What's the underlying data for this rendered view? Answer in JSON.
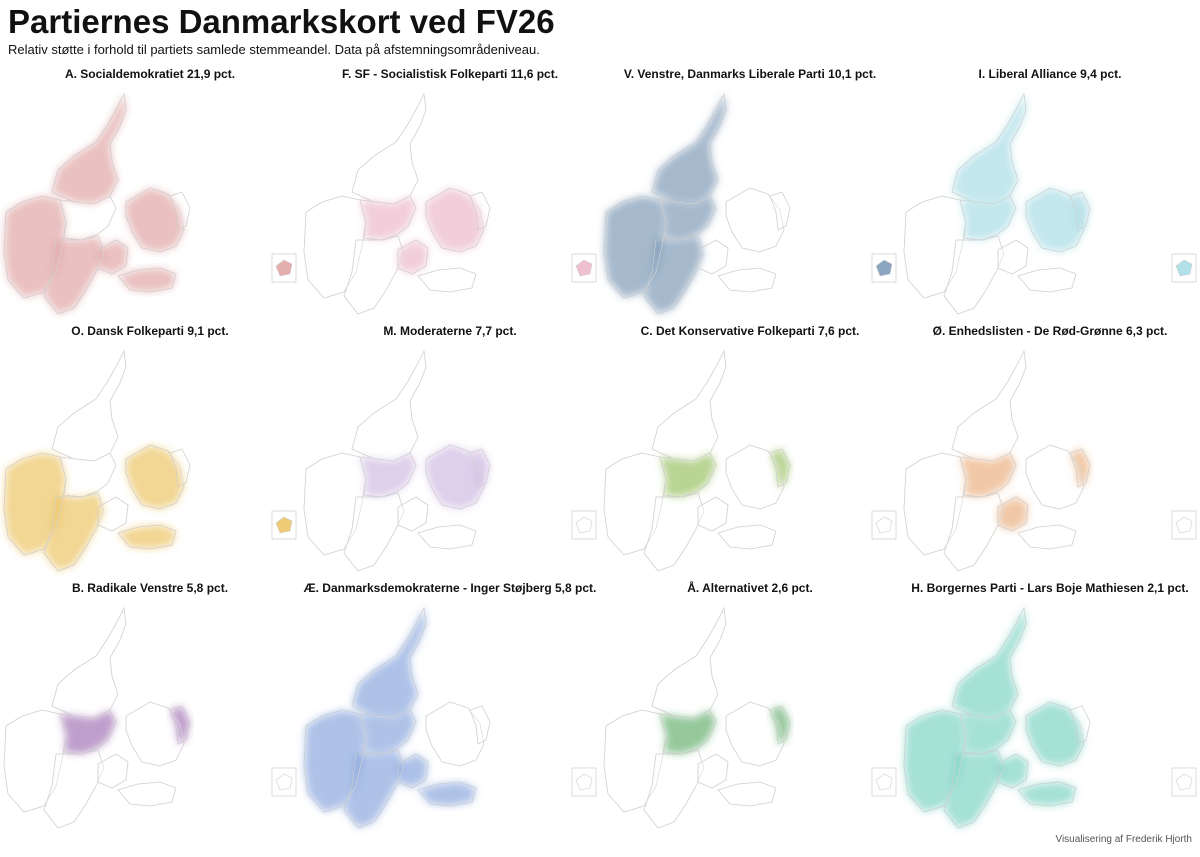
{
  "title": "Partiernes Danmarkskort ved FV26",
  "subtitle": "Relativ støtte i forhold til partiets samlede stemmeandel. Data på afstemningsområdeniveau.",
  "credit": "Visualisering af Frederik Hjorth",
  "panels": [
    {
      "label": "A. Socialdemokratiet 21,9 pct.",
      "share": 21.9,
      "color": "#d98c8c",
      "regions": [
        "north-jutland",
        "west-jutland",
        "funen",
        "zealand",
        "south-jutland",
        "lolland-falster"
      ],
      "bornholm": true
    },
    {
      "label": "F. SF - Socialistisk Folkeparti 11,6 pct.",
      "share": 11.6,
      "color": "#e8a5bd",
      "regions": [
        "central-jutland",
        "funen",
        "zealand"
      ],
      "bornholm": true
    },
    {
      "label": "V. Venstre, Danmarks Liberale Parti 10,1 pct.",
      "share": 10.1,
      "color": "#5b7fa3",
      "regions": [
        "west-jutland",
        "north-jutland",
        "central-jutland",
        "south-jutland"
      ],
      "bornholm": true
    },
    {
      "label": "I. Liberal Alliance 9,4 pct.",
      "share": 9.4,
      "color": "#8fd3de",
      "regions": [
        "central-jutland",
        "north-jutland",
        "zealand",
        "capital"
      ],
      "bornholm": true
    },
    {
      "label": "O. Dansk Folkeparti 9,1 pct.",
      "share": 9.1,
      "color": "#e7b53a",
      "regions": [
        "south-jutland",
        "zealand",
        "lolland-falster",
        "west-jutland"
      ],
      "bornholm": true
    },
    {
      "label": "M. Moderaterne 7,7 pct.",
      "share": 7.7,
      "color": "#c2a8db",
      "regions": [
        "zealand",
        "capital",
        "central-jutland"
      ],
      "bornholm": false
    },
    {
      "label": "C. Det Konservative Folkeparti 7,6 pct.",
      "share": 7.6,
      "color": "#7fb03a",
      "regions": [
        "central-jutland",
        "capital"
      ],
      "bornholm": false
    },
    {
      "label": "Ø. Enhedslisten - De Rød-Grønne 6,3 pct.",
      "share": 6.3,
      "color": "#e59a5f",
      "regions": [
        "capital",
        "central-jutland",
        "funen"
      ],
      "bornholm": false
    },
    {
      "label": "B. Radikale Venstre 5,8 pct.",
      "share": 5.8,
      "color": "#8a4fa3",
      "regions": [
        "capital",
        "central-jutland"
      ],
      "bornholm": false
    },
    {
      "label": "Æ. Danmarksdemokraterne - Inger Støjberg 5,8 pct.",
      "share": 5.8,
      "color": "#6c8fd6",
      "regions": [
        "north-jutland",
        "west-jutland",
        "central-jutland",
        "south-jutland",
        "lolland-falster",
        "funen"
      ],
      "bornholm": false
    },
    {
      "label": "Å. Alternativet 2,6 pct.",
      "share": 2.6,
      "color": "#3e9a4a",
      "regions": [
        "capital",
        "central-jutland"
      ],
      "bornholm": false
    },
    {
      "label": "H. Borgernes Parti - Lars Boje Mathiesen 2,1 pct.",
      "share": 2.1,
      "color": "#5cc9b5",
      "regions": [
        "north-jutland",
        "west-jutland",
        "central-jutland",
        "south-jutland",
        "zealand",
        "lolland-falster",
        "funen"
      ],
      "bornholm": false
    }
  ]
}
